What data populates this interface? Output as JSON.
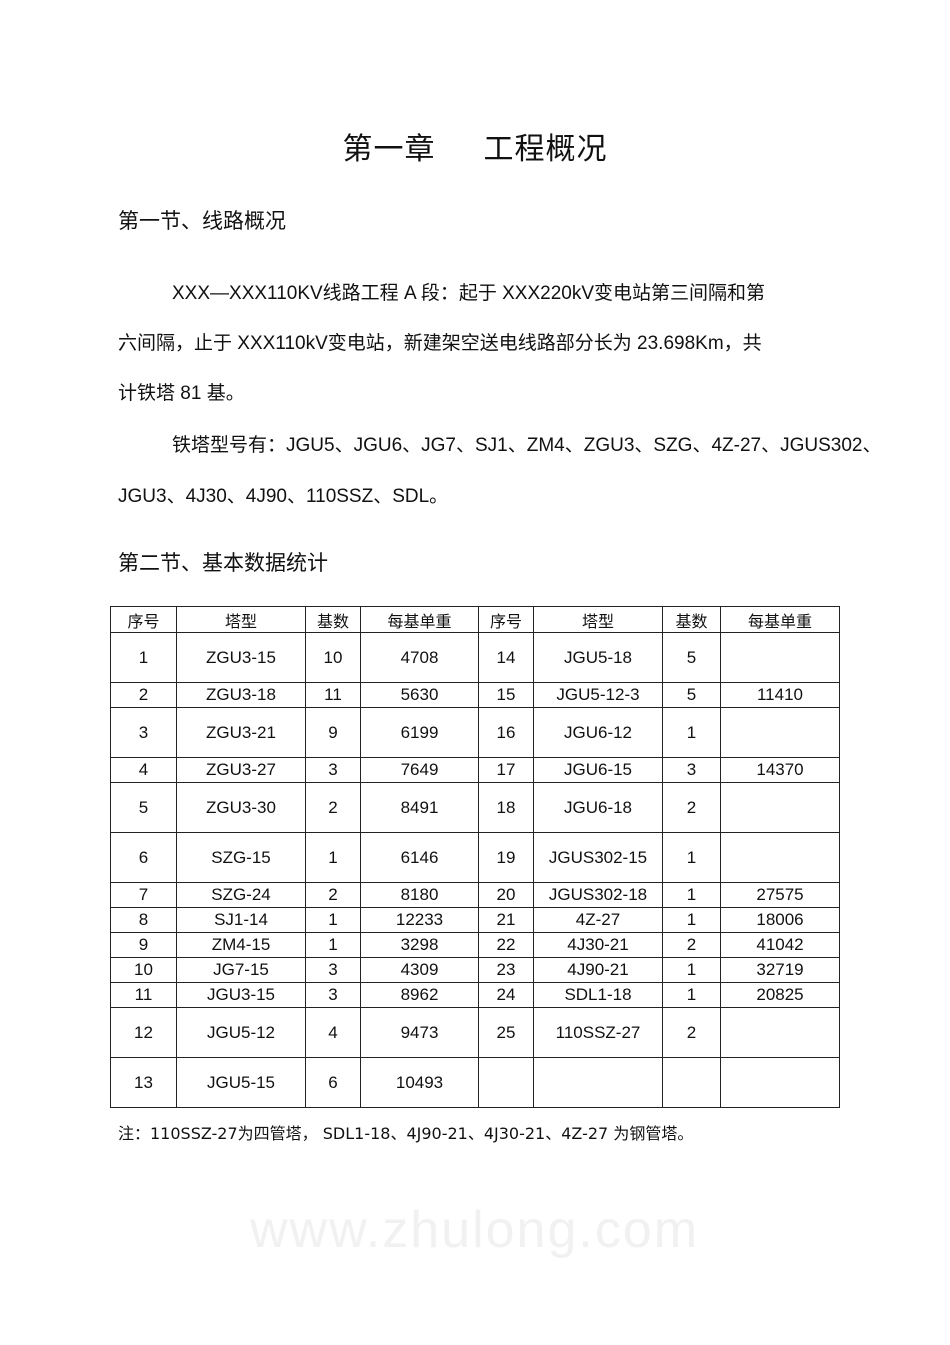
{
  "title": {
    "chapter": "第一章",
    "name": "工程概况"
  },
  "section1": {
    "heading": "第一节、线路概况",
    "para1_line1": "XXX—XXX110KV线路工程  A 段：起于  XXX220kV变电站第三间隔和第",
    "para1_line2": "六间隔，止于  XXX110kV变电站，新建架空送电线路部分长为     23.698Km，共",
    "para1_line3": "计铁塔  81 基。",
    "para2_line1": "铁塔型号有：JGU5、JGU6、JG7、SJ1、ZM4、ZGU3、SZG、4Z-27、JGUS302、",
    "para2_line2": "JGU3、4J30、4J90、110SSZ、SDL。"
  },
  "watermark": "www.zhulong.com",
  "section2": {
    "heading": "第二节、基本数据统计",
    "table": {
      "headers": [
        "序号",
        "塔型",
        "基数",
        "每基单重",
        "序号",
        "塔型",
        "基数",
        "每基单重"
      ],
      "rows": [
        [
          "1",
          "ZGU3-15",
          "10",
          "4708",
          "14",
          "JGU5-18",
          "5",
          ""
        ],
        [
          "2",
          "ZGU3-18",
          "11",
          "5630",
          "15",
          "JGU5-12-3",
          "5",
          "11410"
        ],
        [
          "3",
          "ZGU3-21",
          "9",
          "6199",
          "16",
          "JGU6-12",
          "1",
          ""
        ],
        [
          "4",
          "ZGU3-27",
          "3",
          "7649",
          "17",
          "JGU6-15",
          "3",
          "14370"
        ],
        [
          "5",
          "ZGU3-30",
          "2",
          "8491",
          "18",
          "JGU6-18",
          "2",
          ""
        ],
        [
          "6",
          "SZG-15",
          "1",
          "6146",
          "19",
          "JGUS302-15",
          "1",
          ""
        ],
        [
          "7",
          "SZG-24",
          "2",
          "8180",
          "20",
          "JGUS302-18",
          "1",
          "27575"
        ],
        [
          "8",
          "SJ1-14",
          "1",
          "12233",
          "21",
          "4Z-27",
          "1",
          "18006"
        ],
        [
          "9",
          "ZM4-15",
          "1",
          "3298",
          "22",
          "4J30-21",
          "2",
          "41042"
        ],
        [
          "10",
          "JG7-15",
          "3",
          "4309",
          "23",
          "4J90-21",
          "1",
          "32719"
        ],
        [
          "11",
          "JGU3-15",
          "3",
          "8962",
          "24",
          "SDL1-18",
          "1",
          "20825"
        ],
        [
          "12",
          "JGU5-12",
          "4",
          "9473",
          "25",
          "110SSZ-27",
          "2",
          ""
        ],
        [
          "13",
          "JGU5-15",
          "6",
          "10493",
          "",
          "",
          "",
          ""
        ]
      ]
    },
    "note": "注：110SSZ-27为四管塔，  SDL1-18、4J90-21、4J30-21、4Z-27 为钢管塔。"
  }
}
